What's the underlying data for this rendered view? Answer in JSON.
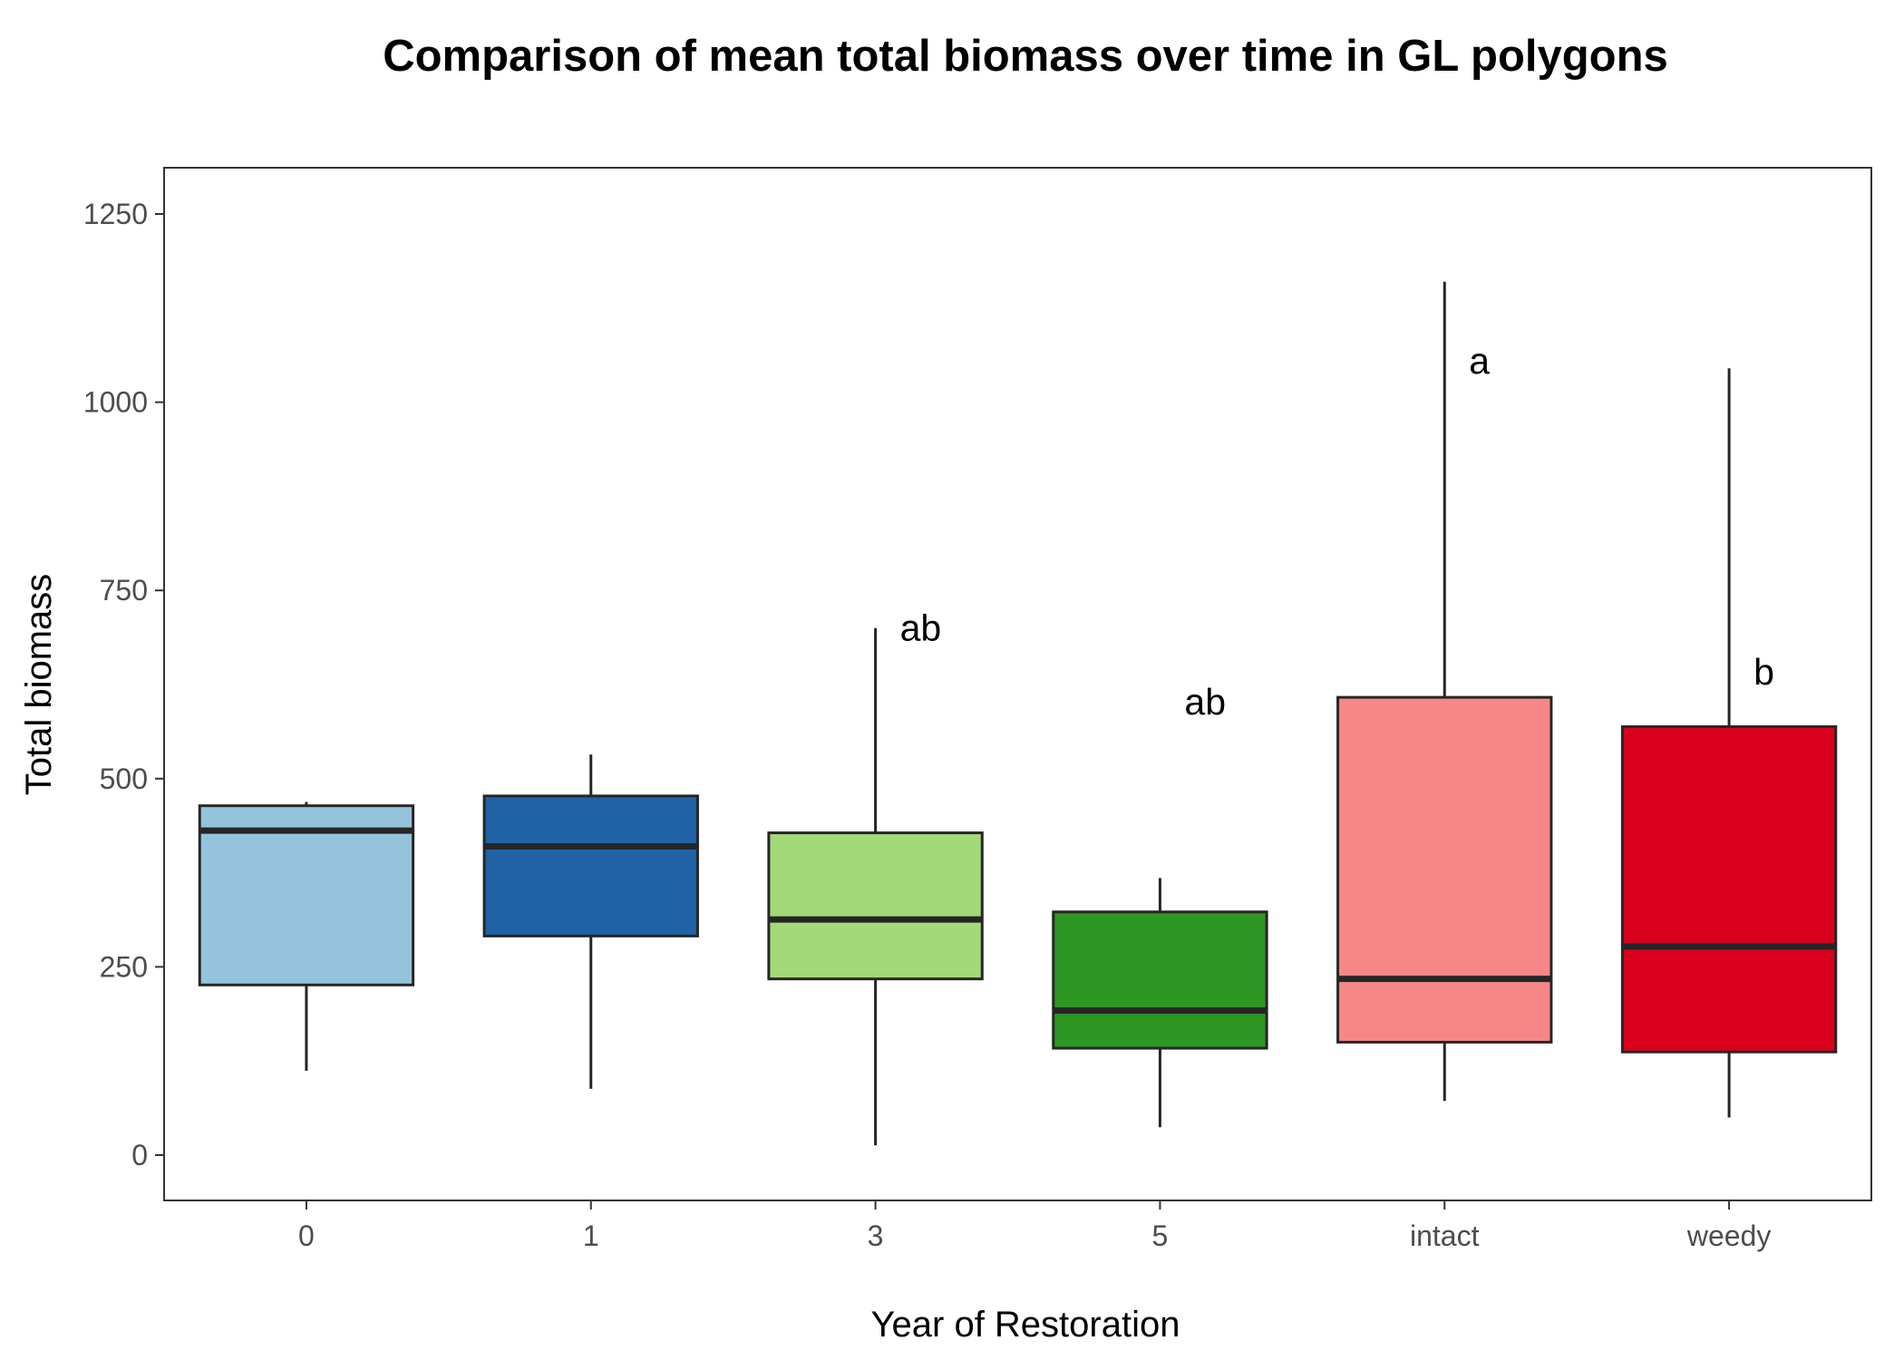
{
  "chart_data": {
    "type": "boxplot",
    "title": "Comparison of mean total biomass over time in GL polygons",
    "xlabel": "Year of Restoration",
    "ylabel": "Total biomass",
    "ylim": [
      -60,
      1250
    ],
    "yticks": [
      0,
      250,
      500,
      750,
      1000,
      1250
    ],
    "grid": false,
    "legend": "none",
    "categories": [
      "0",
      "1",
      "3",
      "5",
      "intact",
      "weedy"
    ],
    "boxes": [
      {
        "category": "0",
        "min": 112,
        "q1": 226,
        "median": 431,
        "q3": 464,
        "max": 469,
        "color": "#96c3dc",
        "annotation": ""
      },
      {
        "category": "1",
        "min": 88,
        "q1": 291,
        "median": 410,
        "q3": 477,
        "max": 532,
        "color": "#1f63a6",
        "annotation": ""
      },
      {
        "category": "3",
        "min": 13,
        "q1": 234,
        "median": 313,
        "q3": 428,
        "max": 700,
        "color": "#a3d977",
        "annotation": "ab"
      },
      {
        "category": "5",
        "min": 37,
        "q1": 142,
        "median": 192,
        "q3": 323,
        "max": 368,
        "color": "#2e9623",
        "annotation": "ab"
      },
      {
        "category": "intact",
        "min": 72,
        "q1": 150,
        "median": 234,
        "q3": 608,
        "max": 1160,
        "color": "#f78787",
        "annotation": "a"
      },
      {
        "category": "weedy",
        "min": 50,
        "q1": 137,
        "median": 277,
        "q3": 569,
        "max": 1045,
        "color": "#d9001b",
        "annotation": "b"
      }
    ],
    "annotation_levels": [
      null,
      null,
      700,
      602,
      1055,
      642
    ]
  }
}
